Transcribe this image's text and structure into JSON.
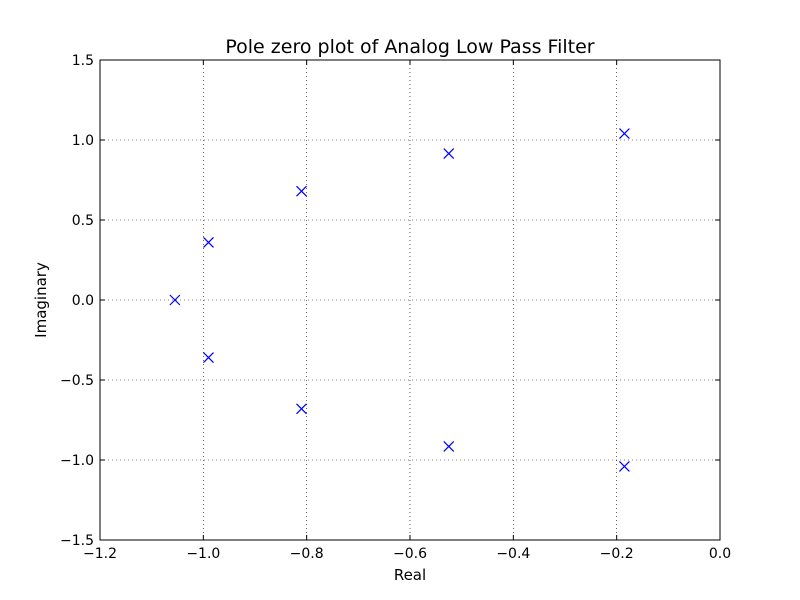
{
  "chart_data": {
    "type": "scatter",
    "title": "Pole zero plot of Analog Low Pass Filter",
    "xlabel": "Real",
    "ylabel": "Imaginary",
    "xlim": [
      -1.2,
      0.0
    ],
    "ylim": [
      -1.5,
      1.5
    ],
    "grid": true,
    "marker": "x",
    "marker_color": "#0000ff",
    "x_ticks": [
      -1.2,
      -1.0,
      -0.8,
      -0.6,
      -0.4,
      -0.2,
      0.0
    ],
    "x_tick_labels": [
      "−1.2",
      "−1.0",
      "−0.8",
      "−0.6",
      "−0.4",
      "−0.2",
      "0.0"
    ],
    "y_ticks": [
      -1.5,
      -1.0,
      -0.5,
      0.0,
      0.5,
      1.0,
      1.5
    ],
    "y_tick_labels": [
      "−1.5",
      "−1.0",
      "−0.5",
      "0.0",
      "0.5",
      "1.0",
      "1.5"
    ],
    "series": [
      {
        "points": [
          {
            "x": -1.055,
            "y": 0.0
          },
          {
            "x": -0.99,
            "y": 0.36
          },
          {
            "x": -0.99,
            "y": -0.36
          },
          {
            "x": -0.81,
            "y": 0.68
          },
          {
            "x": -0.81,
            "y": -0.68
          },
          {
            "x": -0.525,
            "y": 0.915
          },
          {
            "x": -0.525,
            "y": -0.915
          },
          {
            "x": -0.185,
            "y": 1.04
          },
          {
            "x": -0.185,
            "y": -1.04
          }
        ]
      }
    ]
  }
}
